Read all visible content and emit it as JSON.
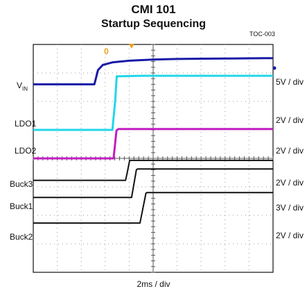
{
  "chart_data": {
    "type": "line",
    "title": "CMI  101",
    "subtitle": "Startup Sequencing",
    "figure_id": "TOC-003",
    "xlabel": "2ms / div",
    "grid": true,
    "x_divisions": 10,
    "y_divisions": 8,
    "x_unit": "div",
    "y_unit": "div",
    "xlim": [
      0,
      10
    ],
    "ylim": [
      0,
      8
    ],
    "series": [
      {
        "name": "VIN",
        "scale_label": "5V / div",
        "color": "#1a1aa8",
        "width": 3,
        "points": [
          [
            0,
            6.6
          ],
          [
            2.55,
            6.6
          ],
          [
            2.7,
            7.1
          ],
          [
            2.9,
            7.28
          ],
          [
            3.3,
            7.37
          ],
          [
            4,
            7.43
          ],
          [
            5,
            7.47
          ],
          [
            6,
            7.49
          ],
          [
            7,
            7.5
          ],
          [
            8.5,
            7.51
          ],
          [
            10,
            7.52
          ]
        ]
      },
      {
        "name": "LDO1",
        "scale_label": "2V / div",
        "color": "#21d6ea",
        "width": 3,
        "points": [
          [
            0,
            5.0
          ],
          [
            3.3,
            5.0
          ],
          [
            3.42,
            6.05
          ],
          [
            3.48,
            6.88
          ],
          [
            4.5,
            6.9
          ],
          [
            10,
            6.9
          ]
        ]
      },
      {
        "name": "LDO2",
        "scale_label": "2V / div",
        "color": "#c21ec2",
        "width": 3,
        "points": [
          [
            0,
            4.0
          ],
          [
            3.35,
            4.0
          ],
          [
            3.47,
            4.98
          ],
          [
            3.55,
            5.03
          ],
          [
            10,
            5.03
          ]
        ]
      },
      {
        "name": "Buck3",
        "scale_label": "2V / div",
        "color": "#111111",
        "width": 2,
        "points": [
          [
            0,
            3.23
          ],
          [
            3.85,
            3.23
          ],
          [
            3.92,
            3.5
          ],
          [
            4.02,
            3.93
          ],
          [
            10,
            3.93
          ]
        ]
      },
      {
        "name": "Buck1",
        "scale_label": "3V / div",
        "color": "#111111",
        "width": 2,
        "points": [
          [
            0,
            2.63
          ],
          [
            4.1,
            2.63
          ],
          [
            4.3,
            3.6
          ],
          [
            4.35,
            3.63
          ],
          [
            10,
            3.63
          ]
        ]
      },
      {
        "name": "Buck2",
        "scale_label": "2V / div",
        "color": "#111111",
        "width": 2,
        "points": [
          [
            0,
            1.73
          ],
          [
            4.45,
            1.73
          ],
          [
            4.7,
            2.78
          ],
          [
            4.75,
            2.8
          ],
          [
            10,
            2.8
          ]
        ]
      }
    ],
    "markers": [
      {
        "type": "trigger-position",
        "position": 3.05,
        "color": "#e8a020"
      },
      {
        "type": "trigger-top",
        "position": 4.1,
        "color": "#e8a020"
      }
    ]
  }
}
